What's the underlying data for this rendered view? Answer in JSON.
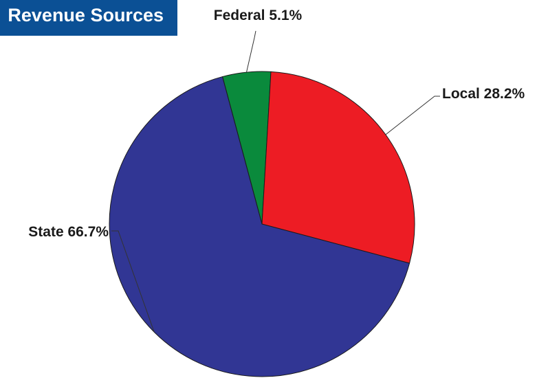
{
  "chart_data": {
    "type": "pie",
    "title": "Revenue Sources",
    "slices": [
      {
        "label": "Federal",
        "value": 5.1,
        "label_text": "Federal 5.1%",
        "color": "#0a8a3c"
      },
      {
        "label": "Local",
        "value": 28.2,
        "label_text": "Local 28.2%",
        "color": "#ed1c24"
      },
      {
        "label": "State",
        "value": 66.7,
        "label_text": "State 66.7%",
        "color": "#313694"
      }
    ],
    "start_angle_deg": -15,
    "direction": "clockwise",
    "legend": "none",
    "label_style": "callout-leader-lines"
  }
}
